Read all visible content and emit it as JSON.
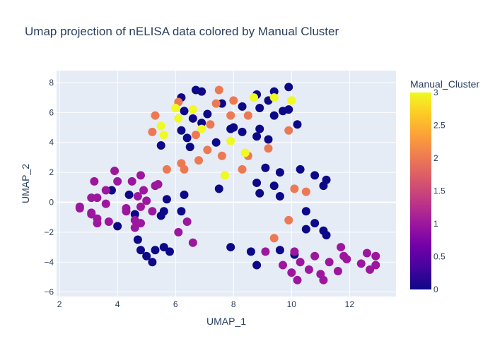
{
  "chart_data": {
    "type": "scatter",
    "title": "Umap projection of nELISA data colored by Manual Cluster",
    "xlabel": "UMAP_1",
    "ylabel": "UMAP_2",
    "xlim": [
      1.9,
      13.6
    ],
    "ylim": [
      -6.3,
      8.8
    ],
    "xticks": [
      2,
      4,
      6,
      8,
      10,
      12
    ],
    "yticks": [
      -6,
      -4,
      -2,
      0,
      2,
      4,
      6,
      8
    ],
    "grid": true,
    "colorbar": {
      "title": "Manual_Cluster",
      "range": [
        0,
        3
      ],
      "ticks": [
        0,
        0.5,
        1,
        1.5,
        2,
        2.5,
        3
      ],
      "colors": [
        "#0d0887",
        "#46039f",
        "#7201a8",
        "#9c179e",
        "#bd3786",
        "#d8576b",
        "#ed7953",
        "#fb9f3a",
        "#fdca26",
        "#f0f921"
      ]
    },
    "series": [
      {
        "cluster": 0,
        "color": "#0d0887",
        "points": [
          [
            6.2,
            7.0
          ],
          [
            6.7,
            7.5
          ],
          [
            6.9,
            7.4
          ],
          [
            8.8,
            7.2
          ],
          [
            9.4,
            7.4
          ],
          [
            9.9,
            7.7
          ],
          [
            6.3,
            6.1
          ],
          [
            6.6,
            5.6
          ],
          [
            6.9,
            5.3
          ],
          [
            7.1,
            5.9
          ],
          [
            7.6,
            6.6
          ],
          [
            8.3,
            6.4
          ],
          [
            8.9,
            6.3
          ],
          [
            9.2,
            6.8
          ],
          [
            9.4,
            5.8
          ],
          [
            9.7,
            6.1
          ],
          [
            9.9,
            6.2
          ],
          [
            10.2,
            5.2
          ],
          [
            6.2,
            4.8
          ],
          [
            6.4,
            4.3
          ],
          [
            7.9,
            4.9
          ],
          [
            8.3,
            4.7
          ],
          [
            8.8,
            4.4
          ],
          [
            8.9,
            4.9
          ],
          [
            5.5,
            3.8
          ],
          [
            6.5,
            3.7
          ],
          [
            7.4,
            4.0
          ],
          [
            9.2,
            4.2
          ],
          [
            8.0,
            5.0
          ],
          [
            9.1,
            2.3
          ],
          [
            9.6,
            2.0
          ],
          [
            10.3,
            2.2
          ],
          [
            10.8,
            1.8
          ],
          [
            11.2,
            1.5
          ],
          [
            11.1,
            1.1
          ],
          [
            8.8,
            1.3
          ],
          [
            9.4,
            1.1
          ],
          [
            7.5,
            0.9
          ],
          [
            8.9,
            0.6
          ],
          [
            9.6,
            0.4
          ],
          [
            3.8,
            0.8
          ],
          [
            4.4,
            0.5
          ],
          [
            5.7,
            0.2
          ],
          [
            6.3,
            0.5
          ],
          [
            10.5,
            -0.6
          ],
          [
            10.5,
            -1.8
          ],
          [
            10.8,
            -1.4
          ],
          [
            11.1,
            -1.9
          ],
          [
            11.2,
            -2.2
          ],
          [
            4.0,
            -1.6
          ],
          [
            4.6,
            -0.8
          ],
          [
            5.6,
            -0.6
          ],
          [
            5.5,
            -0.9
          ],
          [
            6.2,
            -0.6
          ],
          [
            4.7,
            -2.5
          ],
          [
            4.8,
            -3.2
          ],
          [
            5.0,
            -3.6
          ],
          [
            5.2,
            -4.0
          ],
          [
            5.3,
            -3.2
          ],
          [
            5.6,
            -3.0
          ],
          [
            5.8,
            -3.3
          ],
          [
            7.9,
            -3.0
          ],
          [
            8.6,
            -3.3
          ],
          [
            9.6,
            -3.2
          ],
          [
            10.1,
            -3.5
          ],
          [
            8.8,
            -4.2
          ]
        ]
      },
      {
        "cluster": 1,
        "color": "#9c179e",
        "points": [
          [
            3.2,
            1.4
          ],
          [
            3.9,
            2.1
          ],
          [
            4.0,
            1.4
          ],
          [
            4.5,
            1.4
          ],
          [
            4.8,
            1.8
          ],
          [
            4.7,
            0.4
          ],
          [
            4.9,
            0.8
          ],
          [
            5.0,
            0.1
          ],
          [
            5.3,
            1.1
          ],
          [
            5.4,
            1.2
          ],
          [
            2.7,
            -0.3
          ],
          [
            2.7,
            -0.4
          ],
          [
            3.1,
            0.3
          ],
          [
            3.1,
            -0.7
          ],
          [
            3.1,
            -0.8
          ],
          [
            3.3,
            -1.1
          ],
          [
            3.3,
            -1.4
          ],
          [
            3.3,
            0.3
          ],
          [
            3.6,
            -0.1
          ],
          [
            3.6,
            0.8
          ],
          [
            3.7,
            -1.3
          ],
          [
            4.3,
            -0.4
          ],
          [
            4.3,
            -0.6
          ],
          [
            4.6,
            -1.2
          ],
          [
            4.6,
            -1.7
          ],
          [
            4.8,
            -1.4
          ],
          [
            4.8,
            -0.3
          ],
          [
            5.2,
            -0.6
          ],
          [
            6.1,
            -2.0
          ],
          [
            6.4,
            -1.3
          ],
          [
            6.6,
            -2.7
          ],
          [
            9.1,
            -3.3
          ],
          [
            10.1,
            -3.3
          ],
          [
            9.7,
            -4.2
          ],
          [
            10.0,
            -4.7
          ],
          [
            10.3,
            -4.0
          ],
          [
            10.2,
            -5.2
          ],
          [
            10.6,
            -4.5
          ],
          [
            10.8,
            -3.6
          ],
          [
            11.0,
            -4.8
          ],
          [
            11.1,
            -5.2
          ],
          [
            11.3,
            -4.0
          ],
          [
            11.6,
            -4.6
          ],
          [
            11.7,
            -3.0
          ],
          [
            11.8,
            -3.6
          ],
          [
            11.9,
            -3.8
          ],
          [
            12.4,
            -4.1
          ],
          [
            12.6,
            -3.4
          ],
          [
            12.7,
            -4.5
          ],
          [
            12.9,
            -3.6
          ],
          [
            12.9,
            -4.2
          ]
        ]
      },
      {
        "cluster": 2,
        "color": "#ed7953",
        "points": [
          [
            5.3,
            5.8
          ],
          [
            5.2,
            4.7
          ],
          [
            6.1,
            6.7
          ],
          [
            6.7,
            4.5
          ],
          [
            7.2,
            5.2
          ],
          [
            7.4,
            6.6
          ],
          [
            7.5,
            7.5
          ],
          [
            7.9,
            5.8
          ],
          [
            8.0,
            6.8
          ],
          [
            8.5,
            5.8
          ],
          [
            9.2,
            3.6
          ],
          [
            9.9,
            4.8
          ],
          [
            5.7,
            2.2
          ],
          [
            6.2,
            2.6
          ],
          [
            6.3,
            2.2
          ],
          [
            6.8,
            2.8
          ],
          [
            7.1,
            3.5
          ],
          [
            7.6,
            3.1
          ],
          [
            8.3,
            2.2
          ],
          [
            8.5,
            3.1
          ],
          [
            10.1,
            0.9
          ],
          [
            10.5,
            0.7
          ],
          [
            9.9,
            -1.2
          ],
          [
            9.4,
            -2.4
          ]
        ]
      },
      {
        "cluster": 3,
        "color": "#f0f921",
        "points": [
          [
            6.0,
            6.3
          ],
          [
            6.6,
            6.2
          ],
          [
            6.1,
            5.6
          ],
          [
            5.5,
            5.1
          ],
          [
            5.6,
            4.5
          ],
          [
            6.9,
            4.9
          ],
          [
            7.9,
            4.1
          ],
          [
            8.4,
            3.3
          ],
          [
            8.7,
            7.0
          ],
          [
            9.4,
            7.0
          ],
          [
            10.0,
            6.8
          ],
          [
            7.7,
            1.8
          ]
        ]
      }
    ]
  }
}
